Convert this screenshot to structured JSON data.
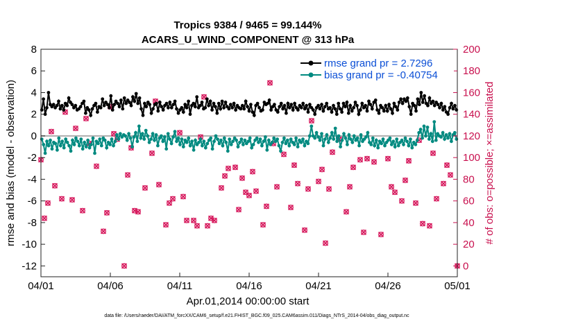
{
  "chart_data": {
    "type": "line",
    "title_line1": "Tropics 9384 / 9465 = 99.144%",
    "title_line2": "ACARS_U_WIND_COMPONENT @ 313 hPa",
    "xlabel": "Apr.01,2014 00:00:00 start",
    "ylabel_left": "rmse and bias (model - observation)",
    "ylabel_right": "# of obs: o=possible; ×=assimilated",
    "footnote": "data file: /Users/raeder/DAI/ATM_forcXX/CAM6_setup/f.e21.FHIST_BGC.f09_025.CAM6assim.011/Diags_NTrS_2014-04/obs_diag_output.nc",
    "x_tick_labels": [
      "04/01",
      "04/06",
      "04/11",
      "04/16",
      "04/21",
      "04/26",
      "05/01"
    ],
    "x_tick_days": [
      0,
      5,
      10,
      15,
      20,
      25,
      30
    ],
    "x_range_days": [
      0,
      30
    ],
    "ylim_left": [
      -13,
      8
    ],
    "yticks_left": [
      8,
      6,
      4,
      2,
      0,
      -2,
      -4,
      -6,
      -8,
      -10,
      -12
    ],
    "ylim_right": [
      -10,
      200
    ],
    "yticks_right": [
      200,
      180,
      160,
      140,
      120,
      100,
      80,
      60,
      40,
      20,
      0
    ],
    "zero_line": 0,
    "legend": {
      "position": "top-right",
      "rmse_label": "rmse grand pr = 2.7296",
      "bias_label": "bias grand pr = -0.40754"
    },
    "colors": {
      "rmse": "#000000",
      "bias": "#008a80",
      "obs": "#d6185c",
      "right_axis": "#c8104e",
      "legend_text": "#0b4fd6",
      "zero_line": "#b0b0b0"
    },
    "series": [
      {
        "name": "rmse",
        "values": [
          2.4,
          3.4,
          2.0,
          2.6,
          4.0,
          2.9,
          2.7,
          2.9,
          2.6,
          2.8,
          3.2,
          2.5,
          2.8,
          2.4,
          3.0,
          2.8,
          3.5,
          3.1,
          2.9,
          2.6,
          2.8,
          2.4,
          2.5,
          2.7,
          3.0,
          3.2,
          2.1,
          2.6,
          2.4,
          1.9,
          2.5,
          2.8,
          3.0,
          2.2,
          2.7,
          2.6,
          3.4,
          2.8,
          3.1,
          2.9,
          2.6,
          3.7,
          2.4,
          2.9,
          3.2,
          3.0,
          2.7,
          3.3,
          2.5,
          3.5,
          3.0,
          3.3,
          3.1,
          2.8,
          3.6,
          3.2,
          3.9,
          3.0,
          3.5,
          2.5,
          1.9,
          3.0,
          2.7,
          3.1,
          2.9,
          2.1,
          2.5,
          2.9,
          3.0,
          2.3,
          3.1,
          2.7,
          2.4,
          2.8,
          3.0,
          2.6,
          3.1,
          2.6,
          2.9,
          3.2,
          2.5,
          2.1,
          2.4,
          2.6,
          2.2,
          2.9,
          2.6,
          3.2,
          2.0,
          2.8,
          3.0,
          2.7,
          3.6,
          2.6,
          2.8,
          3.1,
          2.5,
          2.6,
          3.4,
          2.8,
          3.2,
          2.4,
          3.0,
          2.7,
          2.1,
          3.0,
          2.5,
          3.2,
          2.6,
          3.1,
          2.7,
          2.5,
          2.9,
          2.6,
          3.0,
          2.4,
          2.8,
          2.6,
          2.5,
          2.8,
          2.5,
          3.2,
          2.7,
          2.3,
          2.9,
          2.2,
          1.9,
          2.8,
          3.0,
          2.6,
          2.3,
          2.4,
          3.1,
          2.9,
          3.0,
          3.3,
          2.4,
          2.7,
          2.9,
          2.4,
          2.2,
          2.7,
          3.0,
          2.5,
          2.8,
          2.1,
          3.0,
          2.6,
          2.9,
          2.4,
          3.0,
          2.6,
          2.4,
          2.8,
          2.6,
          3.0,
          2.5,
          2.8,
          2.2,
          2.9,
          2.6,
          2.4,
          2.0,
          2.6,
          2.8,
          2.5,
          2.9,
          2.3,
          2.7,
          3.0,
          2.5,
          2.6,
          2.2,
          2.8,
          2.5,
          2.0,
          3.0,
          2.5,
          2.2,
          3.0,
          2.7,
          3.1,
          2.1,
          2.8,
          2.3,
          2.6,
          3.1,
          2.8,
          2.0,
          2.4,
          3.0,
          2.6,
          2.8,
          2.3,
          3.2,
          2.9,
          2.5,
          3.1,
          3.3,
          2.4,
          2.1,
          2.8,
          2.6,
          2.3,
          2.8,
          2.3,
          2.9,
          2.5,
          2.1,
          3.0,
          2.7,
          2.4,
          3.1,
          3.4,
          3.0,
          3.4,
          3.2,
          3.5,
          2.7,
          2.0,
          3.0,
          2.8,
          2.3,
          3.4,
          2.9,
          4.0,
          3.1,
          3.7,
          3.0,
          2.8,
          3.5,
          3.0,
          3.2,
          2.8,
          3.1,
          2.9,
          2.6,
          3.0,
          2.4,
          2.7,
          2.2,
          2.0,
          2.6,
          3.0,
          2.5,
          2.8,
          2.4
        ],
        "note": "rmse line with black dot markers"
      },
      {
        "name": "bias",
        "values": [
          -0.3,
          -0.8,
          -1.6,
          -0.5,
          -0.9,
          -0.4,
          -1.2,
          -0.6,
          -0.7,
          -1.3,
          -0.2,
          -0.9,
          -0.5,
          -1.1,
          -0.3,
          -0.6,
          -0.9,
          -1.4,
          -0.4,
          -0.8,
          -0.2,
          -0.5,
          -0.9,
          -0.3,
          -1.2,
          -0.6,
          -1.0,
          -0.4,
          -1.1,
          -0.8,
          -0.2,
          -1.6,
          -0.5,
          -0.7,
          -0.3,
          -0.9,
          -0.2,
          -0.4,
          -1.1,
          -0.6,
          -0.8,
          -0.3,
          -0.9,
          -0.5,
          0.1,
          -0.3,
          0.2,
          -0.1,
          0.1,
          0.0,
          -0.4,
          0.2,
          -0.2,
          -1.0,
          -0.1,
          0.3,
          -0.5,
          0.9,
          -0.2,
          0.2,
          -0.3,
          0.5,
          0.0,
          -0.6,
          -0.3,
          0.2,
          -0.4,
          0.1,
          -0.9,
          -0.2,
          0.0,
          -0.5,
          -0.1,
          -1.2,
          0.2,
          -0.3,
          -0.7,
          -0.1,
          0.4,
          -0.5,
          -0.2,
          -0.8,
          -0.3,
          -1.0,
          -0.4,
          -0.6,
          -0.2,
          -0.9,
          -0.5,
          -1.3,
          -0.4,
          -0.8,
          -0.6,
          -0.3,
          -0.9,
          -0.5,
          -1.1,
          -0.7,
          -0.4,
          -0.2,
          -1.2,
          -0.5,
          0.0,
          -0.3,
          -0.7,
          -0.4,
          -0.9,
          -0.2,
          -0.6,
          -1.4,
          -0.3,
          -0.8,
          -0.5,
          -0.2,
          -0.4,
          -1.0,
          -0.6,
          -0.3,
          -0.8,
          -0.4,
          -0.7,
          -0.5,
          -0.2,
          -1.1,
          -0.8,
          -0.4,
          -0.2,
          -0.6,
          -0.3,
          -0.9,
          -0.5,
          -0.1,
          -1.3,
          -0.4,
          -0.8,
          -0.6,
          -0.2,
          -0.5,
          -0.3,
          -0.9,
          -1.4,
          -0.6,
          -0.2,
          -0.7,
          -0.4,
          -0.9,
          -0.3,
          -0.6,
          -0.8,
          -0.2,
          -1.0,
          -0.4,
          -0.6,
          -0.3,
          -0.9,
          -0.5,
          -0.7,
          0.0,
          0.9,
          0.0,
          -0.2,
          0.3,
          -0.1,
          -0.4,
          0.2,
          -0.9,
          -0.3,
          0.1,
          -0.6,
          -0.2,
          0.3,
          -0.3,
          0.7,
          -0.5,
          0.0,
          -1.0,
          -0.4,
          0.2,
          -0.2,
          -0.8,
          0.1,
          -0.3,
          -0.6,
          0.0,
          -0.4,
          -0.2,
          -0.9,
          0.1,
          -0.5,
          -0.3,
          -0.1,
          0.3,
          -0.6,
          -0.8,
          -0.2,
          -0.9,
          -0.4,
          -1.1,
          -0.5,
          -0.7,
          -0.3,
          -0.9,
          -0.6,
          -0.4,
          -0.2,
          -0.8,
          -0.5,
          -1.0,
          -0.3,
          -0.9,
          -0.6,
          -0.4,
          -0.8,
          -0.2,
          -0.5,
          -0.9,
          -0.3,
          -1.1,
          -0.6,
          -0.8,
          -0.4,
          0.3,
          0.6,
          -0.2,
          0.9,
          0.0,
          0.8,
          -0.3,
          0.2,
          -0.5,
          1.3,
          -0.4,
          0.2,
          0.0,
          -0.1,
          0.3,
          -0.3,
          0.1,
          -0.2,
          0.2,
          -0.5,
          0.1,
          0.3,
          -0.3
        ],
        "note": "bias line with teal dot markers"
      }
    ],
    "obs_points_days": [
      0.0,
      0.25,
      0.5,
      0.75,
      1.0,
      1.5,
      1.75,
      2.25,
      2.5,
      3.0,
      3.25,
      3.5,
      4.0,
      4.5,
      4.75,
      5.0,
      5.25,
      5.5,
      6.0,
      6.25,
      6.5,
      6.75,
      7.0,
      7.5,
      8.0,
      8.25,
      8.5,
      9.0,
      9.25,
      9.5,
      10.0,
      10.25,
      10.5,
      11.0,
      11.25,
      11.5,
      11.75,
      12.0,
      12.25,
      12.5,
      13.0,
      13.25,
      13.5,
      14.0,
      14.25,
      14.5,
      14.75,
      15.0,
      15.25,
      15.5,
      16.0,
      16.25,
      16.5,
      16.75,
      17.0,
      17.5,
      18.0,
      18.25,
      18.5,
      19.0,
      19.25,
      19.5,
      20.0,
      20.25,
      20.5,
      20.75,
      21.0,
      21.5,
      22.0,
      22.25,
      22.5,
      23.0,
      23.25,
      23.5,
      24.0,
      24.5,
      25.0,
      25.25,
      25.5,
      26.0,
      26.25,
      26.5,
      27.0,
      27.25,
      27.5,
      28.0,
      28.25,
      28.5,
      29.0,
      29.25,
      29.5,
      30.0
    ],
    "obs_assimilated": [
      98,
      44,
      58,
      124,
      74,
      62,
      142,
      61,
      127,
      51,
      136,
      113,
      92,
      32,
      49,
      147,
      122,
      117,
      0,
      84,
      109,
      51,
      50,
      72,
      104,
      152,
      75,
      38,
      58,
      62,
      123,
      64,
      42,
      42,
      37,
      119,
      156,
      37,
      44,
      42,
      72,
      83,
      90,
      91,
      52,
      81,
      68,
      65,
      87,
      69,
      38,
      55,
      169,
      113,
      73,
      103,
      54,
      93,
      76,
      33,
      71,
      134,
      78,
      89,
      21,
      71,
      105,
      117,
      50,
      73,
      91,
      98,
      31,
      99,
      96,
      29,
      99,
      73,
      68,
      60,
      79,
      97,
      58,
      116,
      39,
      37,
      104,
      62,
      76,
      93,
      84,
      0
    ]
  }
}
